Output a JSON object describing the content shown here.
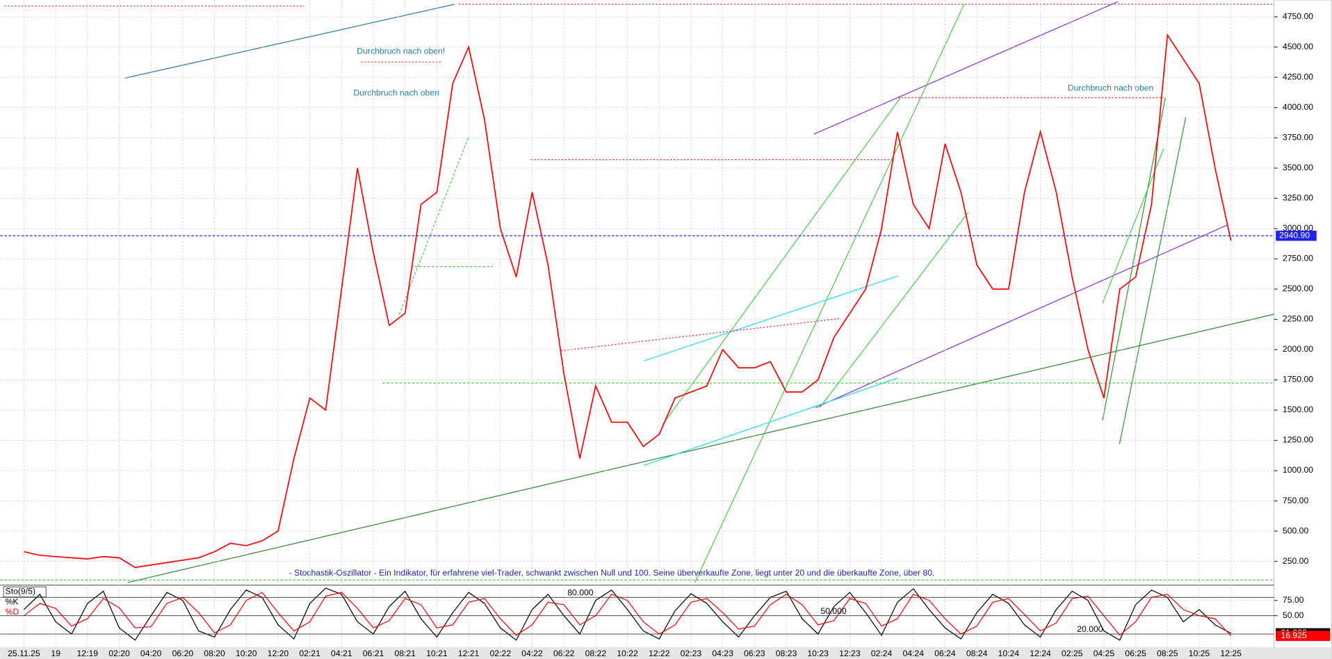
{
  "chart_data": [
    {
      "type": "line",
      "categories": [
        "25.11.25",
        null,
        "19",
        null,
        "12:19",
        null,
        "02:20",
        null,
        "04:20",
        null,
        "06:20",
        null,
        "08:20",
        null,
        "10:20",
        null,
        "12:20",
        null,
        "02:21",
        null,
        "04:21",
        null,
        "06:21",
        null,
        "08:21",
        null,
        "10:21",
        null,
        "12:21",
        null,
        "02:22",
        null,
        "04:22",
        null,
        "06:22",
        null,
        "08:22",
        null,
        "10:22",
        null,
        "12:22",
        null,
        "02:23",
        null,
        "04:23",
        null,
        "06:23",
        null,
        "08:23",
        null,
        "10:23",
        null,
        "12:23",
        null,
        "02:24",
        null,
        "04:24",
        null,
        "06:24",
        null,
        "08:24",
        null,
        "10:24",
        null,
        "12:24",
        null,
        "02:25",
        null,
        "04:25",
        null,
        "06:25",
        null,
        "08:25",
        null,
        "10:25",
        null,
        "12:25"
      ],
      "values": [
        330,
        300,
        290,
        280,
        270,
        290,
        280,
        200,
        220,
        240,
        260,
        280,
        330,
        400,
        380,
        420,
        500,
        1100,
        1600,
        1500,
        2500,
        3500,
        2800,
        2200,
        2300,
        3200,
        3300,
        4200,
        4500,
        3900,
        3000,
        2600,
        3300,
        2700,
        1800,
        1100,
        1700,
        1400,
        1400,
        1200,
        1300,
        1600,
        1650,
        1700,
        2000,
        1850,
        1850,
        1900,
        1650,
        1650,
        1750,
        2100,
        2300,
        2500,
        3000,
        3800,
        3200,
        3000,
        3700,
        3300,
        2700,
        2500,
        2500,
        3300,
        3800,
        3300,
        2600,
        2000,
        1600,
        2500,
        2600,
        3200,
        4600,
        4400,
        4200,
        3500,
        2900
      ],
      "color": "#ff0000",
      "ylim": [
        75,
        4875
      ],
      "yticks": [
        {
          "value": 250,
          "label": "250.00"
        },
        {
          "value": 500,
          "label": "500.00"
        },
        {
          "value": 750,
          "label": "750.00"
        },
        {
          "value": 1000,
          "label": "1000.00"
        },
        {
          "value": 1250,
          "label": "1250.00"
        },
        {
          "value": 1500,
          "label": "1500.00"
        },
        {
          "value": 1750,
          "label": "1750.00"
        },
        {
          "value": 2000,
          "label": "2000.00"
        },
        {
          "value": 2250,
          "label": "2250.00"
        },
        {
          "value": 2500,
          "label": "2500.00"
        },
        {
          "value": 2750,
          "label": "2750.00"
        },
        {
          "value": 3000,
          "label": "3000.00"
        },
        {
          "value": 3250,
          "label": "3250.00"
        },
        {
          "value": 3500,
          "label": "3500.00"
        },
        {
          "value": 3750,
          "label": "3750.00"
        },
        {
          "value": 4000,
          "label": "4000.00"
        },
        {
          "value": 4250,
          "label": "4250.00"
        },
        {
          "value": 4500,
          "label": "4500.00"
        },
        {
          "value": 4750,
          "label": "4750.00"
        }
      ],
      "last_price": {
        "value": 2940.9,
        "label": "2940.90"
      },
      "grid": true,
      "annotations": [
        "Durchbruch nach oben!",
        "Durchbruch nach oben",
        "Durchbruch nach oben",
        "- Stochastik-Oszillator - Ein Indikator, für erfahrene viel-Trader, schwankt zwischen Null und 100. Seine überverkaufte Zone, liegt unter 20 und die überkaufte Zone, über 80."
      ]
    },
    {
      "type": "line",
      "title": "Sto(9/5)",
      "ylim": [
        0,
        100
      ],
      "yticks": [
        {
          "value": 75,
          "label": "75.00"
        },
        {
          "value": 50,
          "label": "50.00"
        }
      ],
      "levels": [
        {
          "value": 80,
          "label": "80.000"
        },
        {
          "value": 50,
          "label": "50.000"
        },
        {
          "value": 20,
          "label": "20.000"
        }
      ],
      "series": [
        {
          "name": "%K",
          "color": "#000000",
          "values": [
            60,
            85,
            40,
            20,
            70,
            90,
            30,
            10,
            50,
            88,
            75,
            25,
            15,
            60,
            92,
            80,
            35,
            12,
            70,
            95,
            85,
            40,
            20,
            65,
            90,
            45,
            15,
            55,
            88,
            70,
            30,
            10,
            60,
            85,
            50,
            20,
            75,
            92,
            60,
            25,
            12,
            58,
            86,
            70,
            40,
            15,
            50,
            80,
            90,
            45,
            20,
            65,
            88,
            55,
            18,
            72,
            94,
            60,
            30,
            12,
            55,
            85,
            70,
            35,
            15,
            60,
            90,
            75,
            25,
            10,
            68,
            92,
            80,
            40,
            60,
            35,
            21.222
          ]
        },
        {
          "name": "%D",
          "color": "#ff0000",
          "values": [
            50,
            70,
            62,
            33,
            45,
            78,
            63,
            30,
            32,
            70,
            80,
            55,
            22,
            35,
            75,
            88,
            55,
            25,
            40,
            82,
            88,
            62,
            30,
            42,
            78,
            68,
            30,
            35,
            72,
            78,
            45,
            18,
            35,
            72,
            68,
            35,
            50,
            85,
            75,
            40,
            20,
            35,
            72,
            78,
            55,
            28,
            33,
            68,
            85,
            68,
            35,
            42,
            78,
            70,
            33,
            45,
            85,
            75,
            45,
            20,
            33,
            72,
            78,
            52,
            25,
            38,
            78,
            82,
            50,
            18,
            40,
            80,
            85,
            60,
            50,
            45,
            16.925
          ]
        }
      ]
    }
  ]
}
